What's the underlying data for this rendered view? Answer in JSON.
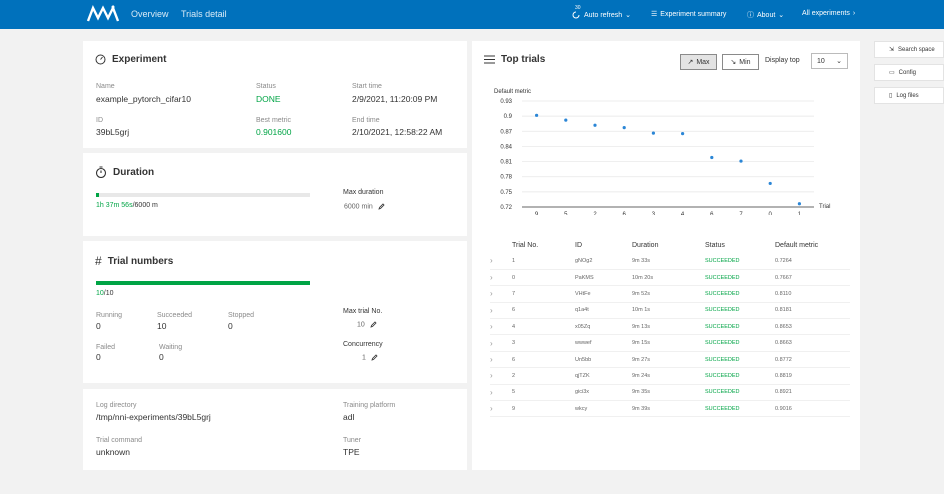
{
  "nav": {
    "links": [
      "Overview",
      "Trials detail"
    ],
    "refresh_badge": "30",
    "auto_refresh": "Auto refresh",
    "experiment_summary": "Experiment summary",
    "about": "About",
    "all_experiments": "All experiments"
  },
  "experiment": {
    "title": "Experiment",
    "name_label": "Name",
    "name": "example_pytorch_cifar10",
    "status_label": "Status",
    "status": "DONE",
    "start_label": "Start time",
    "start": "2/9/2021, 11:20:09 PM",
    "id_label": "ID",
    "id": "39bL5grj",
    "best_label": "Best metric",
    "best": "0.901600",
    "end_label": "End time",
    "end": "2/10/2021, 12:58:22 AM"
  },
  "duration": {
    "title": "Duration",
    "progress_text": "1h 37m 56s",
    "progress_total": "/6000 m",
    "progress_fraction": 0.016,
    "max_label": "Max duration",
    "max_value": "6000 min"
  },
  "trial_numbers": {
    "title": "Trial numbers",
    "count_text": "10",
    "count_total": "/10",
    "progress_fraction": 1.0,
    "running_label": "Running",
    "running": "0",
    "succeeded_label": "Succeeded",
    "succeeded": "10",
    "stopped_label": "Stopped",
    "stopped": "0",
    "failed_label": "Failed",
    "failed": "0",
    "waiting_label": "Waiting",
    "waiting": "0",
    "max_trial_label": "Max trial No.",
    "max_trial": "10",
    "concurrency_label": "Concurrency",
    "concurrency": "1"
  },
  "info": {
    "log_dir_label": "Log directory",
    "log_dir": "/tmp/nni-experiments/39bL5grj",
    "platform_label": "Training platform",
    "platform": "adl",
    "command_label": "Trial command",
    "command": "unknown",
    "tuner_label": "Tuner",
    "tuner": "TPE"
  },
  "top_trials": {
    "title": "Top trials",
    "max_label": "Max",
    "min_label": "Min",
    "display_top_label": "Display top",
    "display_top_value": "10",
    "columns": [
      "Trial No.",
      "ID",
      "Duration",
      "Status",
      "Default metric"
    ],
    "rows": [
      {
        "no": "1",
        "id": "gNOg2",
        "duration": "9m 33s",
        "status": "SUCCEEDED",
        "metric": "0.7264"
      },
      {
        "no": "0",
        "id": "PaKMS",
        "duration": "10m 20s",
        "status": "SUCCEEDED",
        "metric": "0.7667"
      },
      {
        "no": "7",
        "id": "VHtFe",
        "duration": "9m 52s",
        "status": "SUCCEEDED",
        "metric": "0.8110"
      },
      {
        "no": "6",
        "id": "q1a4t",
        "duration": "10m 1s",
        "status": "SUCCEEDED",
        "metric": "0.8181"
      },
      {
        "no": "4",
        "id": "x05Zq",
        "duration": "9m 13s",
        "status": "SUCCEEDED",
        "metric": "0.8653"
      },
      {
        "no": "3",
        "id": "wwwef",
        "duration": "9m 15s",
        "status": "SUCCEEDED",
        "metric": "0.8663"
      },
      {
        "no": "6",
        "id": "Un5bb",
        "duration": "9m 27s",
        "status": "SUCCEEDED",
        "metric": "0.8772"
      },
      {
        "no": "2",
        "id": "qjTZK",
        "duration": "9m 24s",
        "status": "SUCCEEDED",
        "metric": "0.8819"
      },
      {
        "no": "5",
        "id": "gici3x",
        "duration": "9m 35s",
        "status": "SUCCEEDED",
        "metric": "0.8921"
      },
      {
        "no": "9",
        "id": "wkcy",
        "duration": "9m 39s",
        "status": "SUCCEEDED",
        "metric": "0.9016"
      }
    ]
  },
  "side_buttons": [
    "Search space",
    "Config",
    "Log files"
  ],
  "colors": {
    "accent": "#0071bc",
    "success": "#00a445",
    "point": "#2b86d6"
  },
  "chart_data": {
    "type": "scatter",
    "ylabel": "Default metric",
    "xlabel": "Trial",
    "categories": [
      "9",
      "5",
      "2",
      "6",
      "3",
      "4",
      "6",
      "7",
      "0",
      "1"
    ],
    "values": [
      0.9016,
      0.8921,
      0.8819,
      0.8772,
      0.8663,
      0.8653,
      0.8181,
      0.811,
      0.7667,
      0.7264
    ],
    "ylim": [
      0.72,
      0.93
    ],
    "yticks": [
      "0.93",
      "0.9",
      "0.87",
      "0.84",
      "0.81",
      "0.78",
      "0.75",
      "0.72"
    ],
    "grid": true
  }
}
